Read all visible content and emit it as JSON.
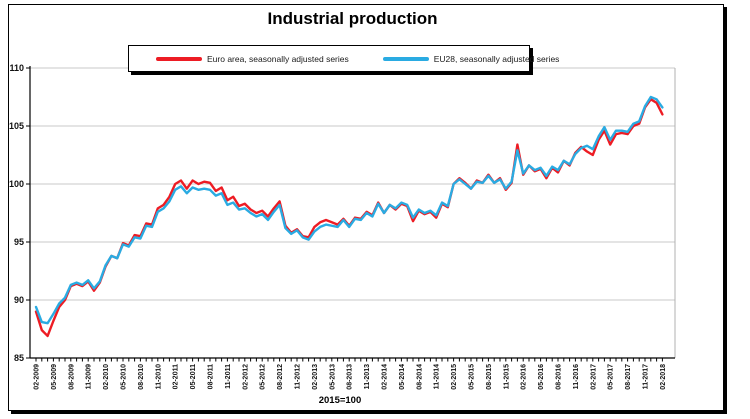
{
  "title": "Industrial production",
  "footnote": "2015=100",
  "colors": {
    "euro_area": "#ed1c24",
    "eu28": "#2aabe2",
    "gridline": "#c9c9c9",
    "plot_right_border": "#b0b0b0",
    "axis": "#000000"
  },
  "legend": {
    "items": [
      {
        "label": "Euro area, seasonally adjusted series",
        "color": "#ed1c24"
      },
      {
        "label": "EU28, seasonally adjusted series",
        "color": "#2aabe2"
      }
    ]
  },
  "chart_data": {
    "type": "line",
    "title": "Industrial production",
    "note": "2015=100",
    "xlabel": "",
    "ylabel": "",
    "ylim": [
      85,
      110
    ],
    "yticks": [
      85,
      90,
      95,
      100,
      105,
      110
    ],
    "grid": true,
    "legend_position": "top",
    "x_tick_label_every": 3,
    "categories": [
      "02-2009",
      "03-2009",
      "04-2009",
      "05-2009",
      "06-2009",
      "07-2009",
      "08-2009",
      "09-2009",
      "10-2009",
      "11-2009",
      "12-2009",
      "01-2010",
      "02-2010",
      "03-2010",
      "04-2010",
      "05-2010",
      "06-2010",
      "07-2010",
      "08-2010",
      "09-2010",
      "10-2010",
      "11-2010",
      "12-2010",
      "01-2011",
      "02-2011",
      "03-2011",
      "04-2011",
      "05-2011",
      "06-2011",
      "07-2011",
      "08-2011",
      "09-2011",
      "10-2011",
      "11-2011",
      "12-2011",
      "01-2012",
      "02-2012",
      "03-2012",
      "04-2012",
      "05-2012",
      "06-2012",
      "07-2012",
      "08-2012",
      "09-2012",
      "10-2012",
      "11-2012",
      "12-2012",
      "01-2013",
      "02-2013",
      "03-2013",
      "04-2013",
      "05-2013",
      "06-2013",
      "07-2013",
      "08-2013",
      "09-2013",
      "10-2013",
      "11-2013",
      "12-2013",
      "01-2014",
      "02-2014",
      "03-2014",
      "04-2014",
      "05-2014",
      "06-2014",
      "07-2014",
      "08-2014",
      "09-2014",
      "10-2014",
      "11-2014",
      "12-2014",
      "01-2015",
      "02-2015",
      "03-2015",
      "04-2015",
      "05-2015",
      "06-2015",
      "07-2015",
      "08-2015",
      "09-2015",
      "10-2015",
      "11-2015",
      "12-2015",
      "01-2016",
      "02-2016",
      "03-2016",
      "04-2016",
      "05-2016",
      "06-2016",
      "07-2016",
      "08-2016",
      "09-2016",
      "10-2016",
      "11-2016",
      "12-2016",
      "01-2017",
      "02-2017",
      "03-2017",
      "04-2017",
      "05-2017",
      "06-2017",
      "07-2017",
      "08-2017",
      "09-2017",
      "10-2017",
      "11-2017",
      "12-2017",
      "01-2018",
      "02-2018"
    ],
    "series": [
      {
        "name": "Euro area, seasonally adjusted series",
        "color": "#ed1c24",
        "values": [
          89.0,
          87.4,
          86.9,
          88.2,
          89.4,
          90.0,
          91.2,
          91.4,
          91.2,
          91.6,
          90.8,
          91.5,
          92.9,
          93.8,
          93.6,
          94.9,
          94.7,
          95.6,
          95.5,
          96.6,
          96.5,
          97.9,
          98.2,
          98.9,
          100.0,
          100.3,
          99.6,
          100.3,
          100.0,
          100.2,
          100.1,
          99.4,
          99.7,
          98.6,
          98.9,
          98.1,
          98.3,
          97.8,
          97.5,
          97.7,
          97.2,
          97.9,
          98.5,
          96.4,
          95.8,
          96.1,
          95.5,
          95.4,
          96.3,
          96.7,
          96.9,
          96.7,
          96.5,
          97.0,
          96.4,
          97.1,
          97.0,
          97.6,
          97.3,
          98.4,
          97.5,
          98.2,
          97.8,
          98.3,
          98.1,
          96.8,
          97.7,
          97.4,
          97.6,
          97.1,
          98.3,
          98.0,
          100.0,
          100.5,
          100.1,
          99.6,
          100.3,
          100.1,
          100.8,
          100.1,
          100.5,
          99.5,
          100.1,
          103.4,
          100.8,
          101.6,
          101.1,
          101.3,
          100.5,
          101.4,
          101.0,
          102.0,
          101.6,
          102.7,
          103.2,
          102.8,
          102.5,
          103.8,
          104.6,
          103.4,
          104.3,
          104.4,
          104.3,
          105.0,
          105.2,
          106.6,
          107.3,
          107.0,
          106.0
        ]
      },
      {
        "name": "EU28, seasonally adjusted series",
        "color": "#2aabe2",
        "values": [
          89.4,
          88.1,
          88.0,
          88.8,
          89.7,
          90.2,
          91.3,
          91.5,
          91.3,
          91.7,
          91.0,
          91.6,
          93.0,
          93.8,
          93.6,
          94.8,
          94.6,
          95.4,
          95.3,
          96.4,
          96.3,
          97.6,
          97.9,
          98.5,
          99.5,
          99.8,
          99.2,
          99.7,
          99.5,
          99.6,
          99.5,
          99.0,
          99.2,
          98.2,
          98.4,
          97.8,
          97.9,
          97.5,
          97.2,
          97.4,
          96.9,
          97.6,
          98.2,
          96.2,
          95.7,
          96.0,
          95.4,
          95.2,
          95.9,
          96.3,
          96.5,
          96.4,
          96.3,
          96.9,
          96.3,
          97.0,
          96.9,
          97.5,
          97.2,
          98.3,
          97.5,
          98.2,
          97.9,
          98.4,
          98.2,
          97.1,
          97.8,
          97.5,
          97.7,
          97.3,
          98.4,
          98.1,
          100.0,
          100.4,
          100.0,
          99.6,
          100.2,
          100.1,
          100.7,
          100.1,
          100.4,
          99.6,
          100.2,
          102.9,
          100.9,
          101.6,
          101.2,
          101.4,
          100.7,
          101.5,
          101.2,
          102.0,
          101.7,
          102.6,
          103.1,
          103.3,
          103.0,
          104.1,
          104.9,
          103.8,
          104.6,
          104.6,
          104.5,
          105.2,
          105.4,
          106.7,
          107.5,
          107.3,
          106.6
        ]
      }
    ]
  }
}
